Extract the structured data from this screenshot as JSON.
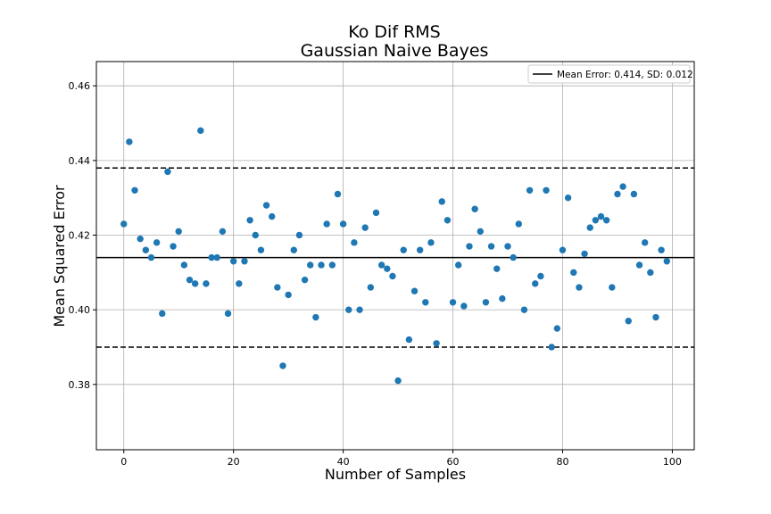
{
  "chart_data": {
    "type": "scatter",
    "title": [
      "Ko Dif RMS",
      "Gaussian Naive Bayes"
    ],
    "xlabel": "Number of Samples",
    "ylabel": "Mean Squared Error",
    "xlim": [
      -5,
      104
    ],
    "ylim": [
      0.3625,
      0.4665
    ],
    "xticks": [
      0,
      20,
      40,
      60,
      80,
      100
    ],
    "yticks": [
      0.38,
      0.4,
      0.42,
      0.44,
      0.46
    ],
    "xtick_labels": [
      "0",
      "20",
      "40",
      "60",
      "80",
      "100"
    ],
    "ytick_labels": [
      "0.38",
      "0.40",
      "0.42",
      "0.44",
      "0.46"
    ],
    "grid": true,
    "legend": {
      "position": "top-right",
      "entries": [
        "Mean Error: 0.414, SD: 0.012"
      ]
    },
    "mean": 0.414,
    "sd_lines": [
      0.39,
      0.438
    ],
    "point_color": "#1f77b4",
    "series": [
      {
        "x": [
          0,
          1,
          2,
          3,
          4,
          5,
          6,
          7,
          8,
          9,
          10,
          11,
          12,
          13,
          14,
          15,
          16,
          17,
          18,
          19,
          20,
          21,
          22,
          23,
          24,
          25,
          26,
          27,
          28,
          29,
          30,
          31,
          32,
          33,
          34,
          35,
          36,
          37,
          38,
          39,
          40,
          41,
          42,
          43,
          44,
          45,
          46,
          47,
          48,
          49,
          50,
          51,
          52,
          53,
          54,
          55,
          56,
          57,
          58,
          59,
          60,
          61,
          62,
          63,
          64,
          65,
          66,
          67,
          68,
          69,
          70,
          71,
          72,
          73,
          74,
          75,
          76,
          77,
          78,
          79,
          80,
          81,
          82,
          83,
          84,
          85,
          86,
          87,
          88,
          89,
          90,
          91,
          92,
          93,
          94,
          95,
          96,
          97,
          98,
          99
        ],
        "y": [
          0.423,
          0.445,
          0.432,
          0.419,
          0.416,
          0.414,
          0.418,
          0.399,
          0.437,
          0.417,
          0.421,
          0.412,
          0.408,
          0.407,
          0.448,
          0.407,
          0.414,
          0.414,
          0.421,
          0.399,
          0.413,
          0.407,
          0.413,
          0.424,
          0.42,
          0.416,
          0.428,
          0.425,
          0.406,
          0.385,
          0.404,
          0.416,
          0.42,
          0.408,
          0.412,
          0.398,
          0.412,
          0.423,
          0.412,
          0.431,
          0.423,
          0.4,
          0.418,
          0.4,
          0.422,
          0.406,
          0.426,
          0.412,
          0.411,
          0.409,
          0.381,
          0.416,
          0.392,
          0.405,
          0.416,
          0.402,
          0.418,
          0.391,
          0.429,
          0.424,
          0.402,
          0.412,
          0.401,
          0.417,
          0.427,
          0.421,
          0.402,
          0.417,
          0.411,
          0.403,
          0.417,
          0.414,
          0.423,
          0.4,
          0.432,
          0.407,
          0.409,
          0.432,
          0.39,
          0.395,
          0.416,
          0.43,
          0.41,
          0.406,
          0.415,
          0.422,
          0.424,
          0.425,
          0.424,
          0.406,
          0.431,
          0.433,
          0.397,
          0.431,
          0.412,
          0.418,
          0.41,
          0.398,
          0.416,
          0.413
        ]
      }
    ]
  }
}
